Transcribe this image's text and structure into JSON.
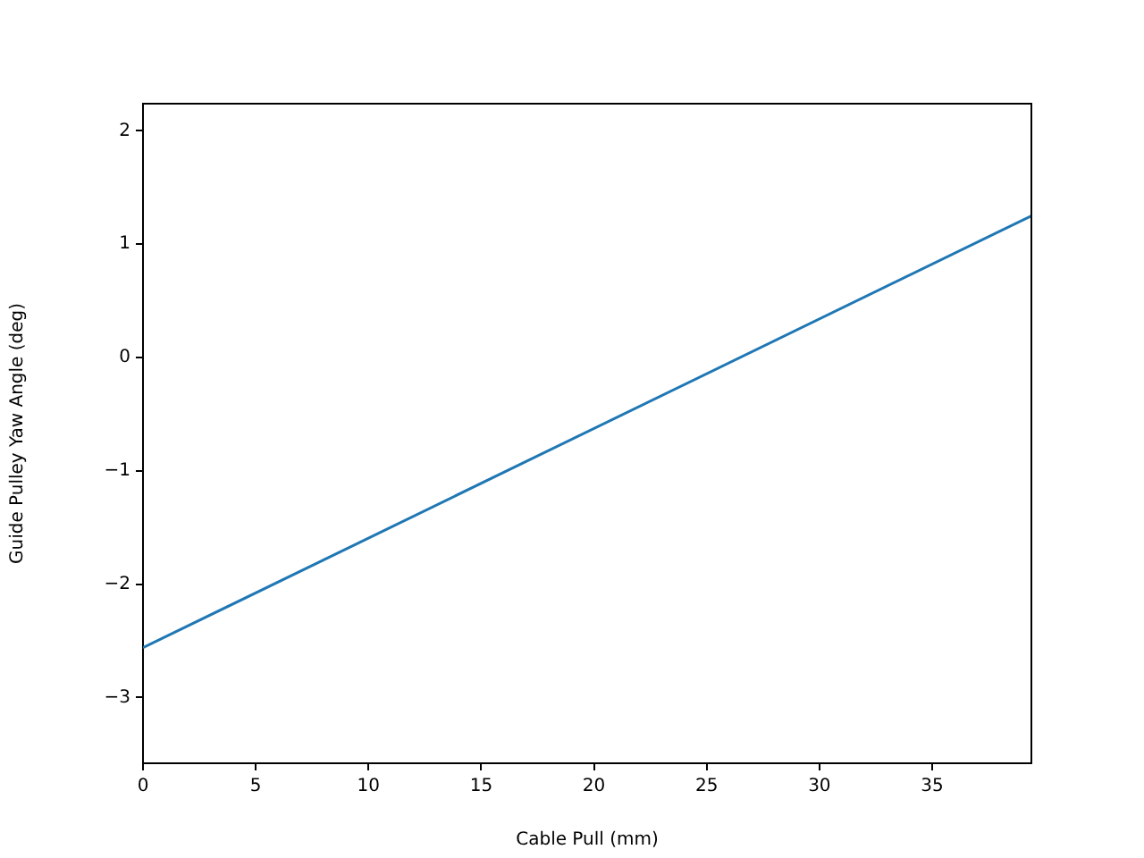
{
  "chart_data": {
    "type": "line",
    "xlabel": "Cable Pull (mm)",
    "ylabel": "Guide Pulley Yaw Angle (deg)",
    "x": [
      0,
      39.4
    ],
    "series": [
      {
        "color": "#1f77b4",
        "values": [
          -2.56,
          1.25
        ]
      }
    ],
    "xlim": [
      0,
      39.4
    ],
    "xticks": [
      0,
      5,
      10,
      15,
      20,
      25,
      30,
      35
    ],
    "ylim": [
      -3.58,
      2.24
    ],
    "yticks": [
      {
        "value": -3,
        "label": "−3"
      },
      {
        "value": -2,
        "label": "−2"
      },
      {
        "value": -1,
        "label": "−1"
      },
      0,
      1,
      2
    ],
    "grid": false,
    "legend": false,
    "marker": "none",
    "line_style": "solid"
  }
}
